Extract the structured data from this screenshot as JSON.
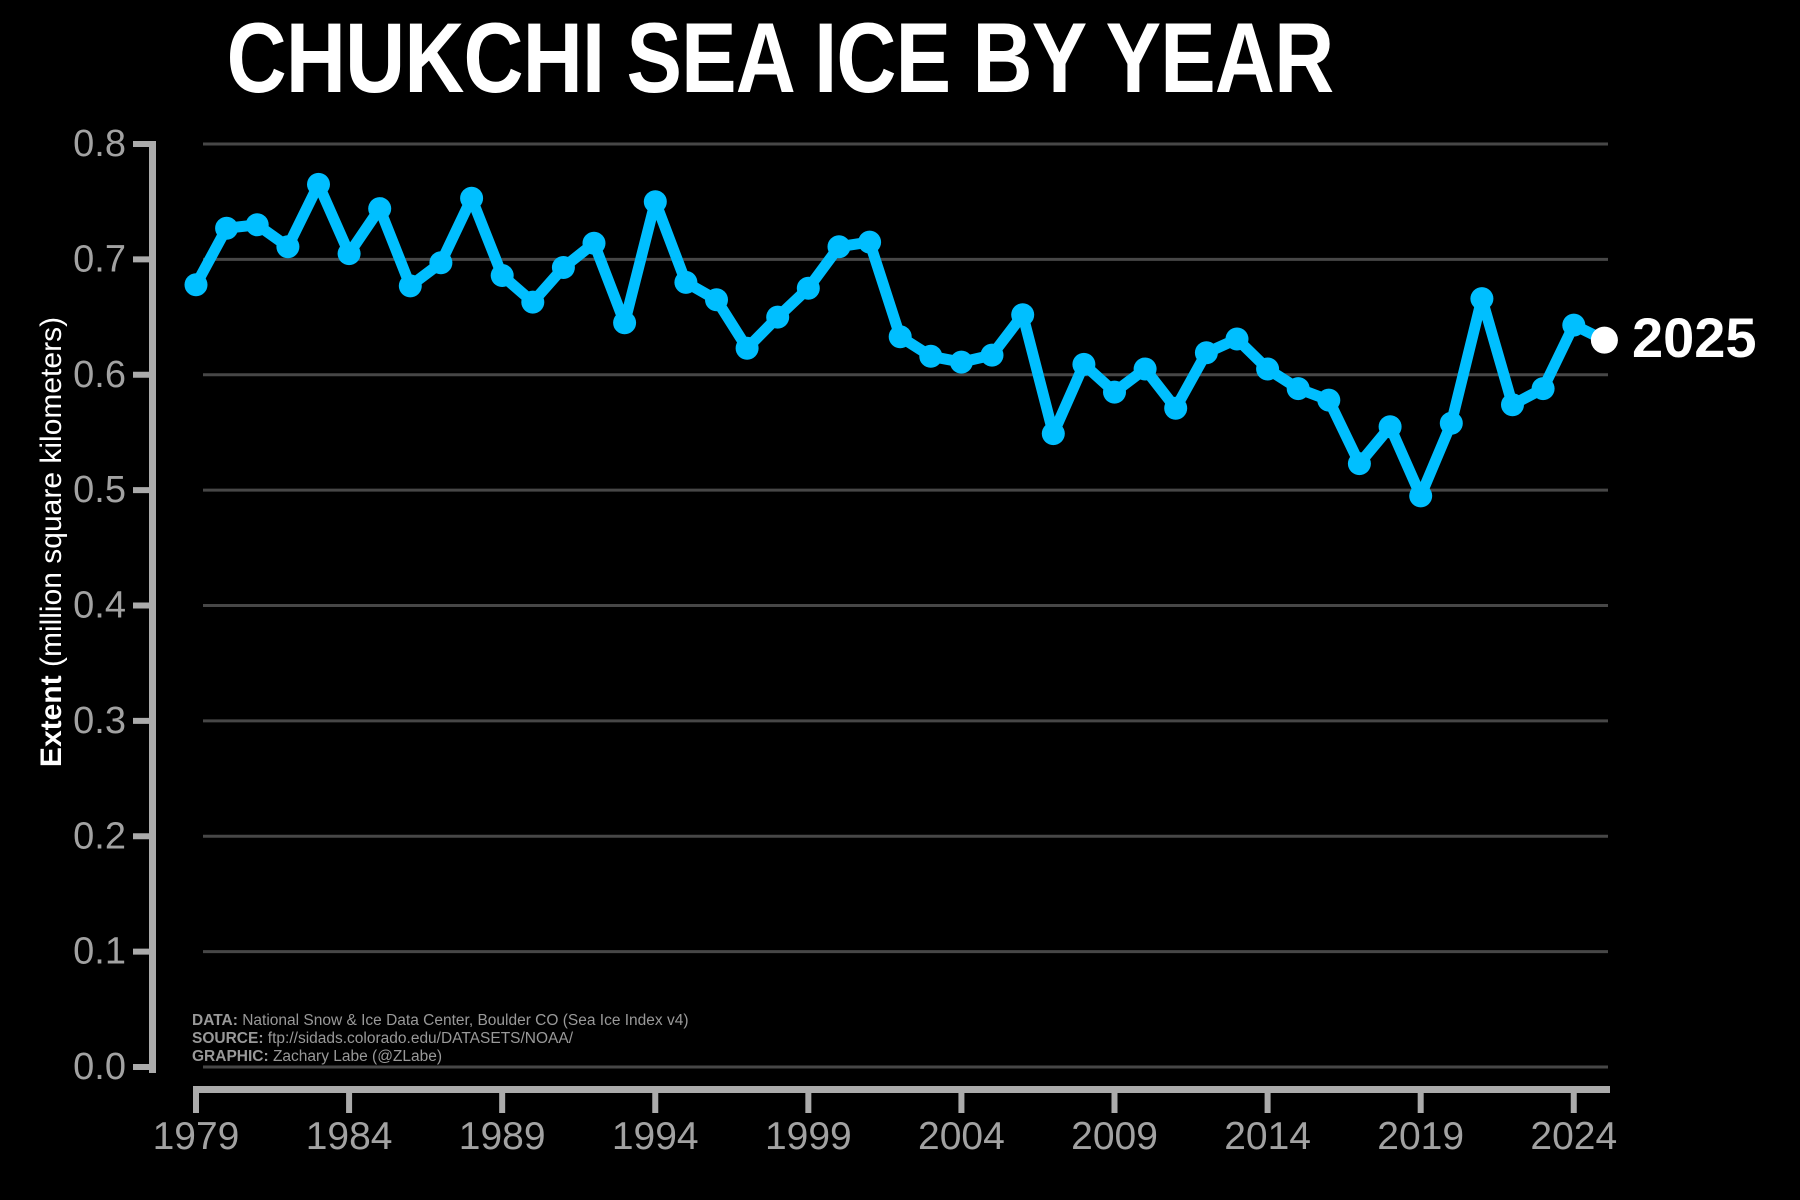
{
  "title": "CHUKCHI SEA ICE BY YEAR",
  "ylabel": {
    "bold": "Extent",
    "rest": " (million square kilometers)"
  },
  "annotation": "2025",
  "footer": {
    "line1_label": "DATA:",
    "line1_text": " National Snow & Ice Data Center, Boulder CO (Sea Ice Index v4)",
    "line2_label": "SOURCE:",
    "line2_text": " ftp://sidads.colorado.edu/DATASETS/NOAA/",
    "line3_label": "GRAPHIC:",
    "line3_text": " Zachary Labe (@ZLabe)"
  },
  "colors": {
    "background": "#000000",
    "line": "#00bfff",
    "highlight_dot": "#ffffff",
    "grid": "#474747",
    "axis": "#ababab",
    "tick_label": "#a2a2a2",
    "footer_text": "#999999",
    "title_text": "#ffffff"
  },
  "chart_data": {
    "type": "line",
    "title": "CHUKCHI SEA ICE BY YEAR",
    "xlabel": "",
    "ylabel": "Extent (million square kilometers)",
    "grid": true,
    "ylim": [
      0.0,
      0.8
    ],
    "xlim": [
      1979,
      2025
    ],
    "x": [
      1979,
      1980,
      1981,
      1982,
      1983,
      1984,
      1985,
      1986,
      1987,
      1988,
      1989,
      1990,
      1991,
      1992,
      1993,
      1994,
      1995,
      1996,
      1997,
      1998,
      1999,
      2000,
      2001,
      2002,
      2003,
      2004,
      2005,
      2006,
      2007,
      2008,
      2009,
      2010,
      2011,
      2012,
      2013,
      2014,
      2015,
      2016,
      2017,
      2018,
      2019,
      2020,
      2021,
      2022,
      2023,
      2024,
      2025
    ],
    "values": [
      0.678,
      0.727,
      0.73,
      0.711,
      0.765,
      0.705,
      0.744,
      0.677,
      0.697,
      0.753,
      0.686,
      0.663,
      0.693,
      0.714,
      0.645,
      0.75,
      0.68,
      0.665,
      0.623,
      0.65,
      0.675,
      0.711,
      0.715,
      0.633,
      0.616,
      0.611,
      0.617,
      0.652,
      0.549,
      0.609,
      0.585,
      0.605,
      0.571,
      0.619,
      0.631,
      0.605,
      0.588,
      0.578,
      0.523,
      0.555,
      0.495,
      0.558,
      0.666,
      0.574,
      0.588,
      0.643,
      0.63
    ],
    "series_name": "Chukchi Sea ice extent",
    "highlight_last_point": {
      "year": 2025,
      "value": 0.63,
      "label": "2025"
    },
    "xticks": [
      1979,
      1984,
      1989,
      1994,
      1999,
      2004,
      2009,
      2014,
      2019,
      2024
    ],
    "xtick_labels": [
      "1979",
      "1984",
      "1989",
      "1994",
      "1999",
      "2004",
      "2009",
      "2014",
      "2019",
      "2024"
    ],
    "yticks": [
      0.0,
      0.1,
      0.2,
      0.3,
      0.4,
      0.5,
      0.6,
      0.7,
      0.8
    ],
    "ytick_labels": [
      "0.0",
      "0.1",
      "0.2",
      "0.3",
      "0.4",
      "0.5",
      "0.6",
      "0.7",
      "0.8"
    ],
    "legend": "none"
  }
}
